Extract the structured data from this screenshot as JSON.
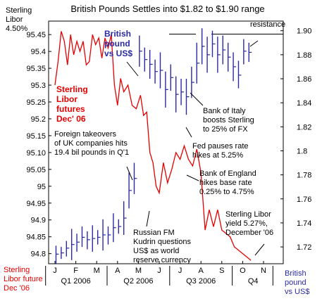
{
  "chart_data": {
    "type": "line",
    "title": "British Pounds Settles into $1.82 to $1.90 range",
    "left_axis": {
      "ticks": [
        "95.45",
        "95.4",
        "95.35",
        "95.3",
        "95.25",
        "95.2",
        "95.15",
        "95.10",
        "95.05",
        "95",
        "94.95",
        "94.9",
        "94.85",
        "94.8"
      ],
      "range": [
        94.77,
        95.49
      ],
      "top_label_line1": "Sterling",
      "top_label_line2": "Libor",
      "top_label_line3": "4.50%",
      "bottom_label_line1": "Sterling",
      "bottom_label_line2": "Libor future",
      "bottom_label_line3": "Dec '06"
    },
    "right_axis": {
      "ticks": [
        "1.90",
        "1.88",
        "1.86",
        "1.84",
        "1.82",
        "1.8",
        "1.78",
        "1.76",
        "1.74",
        "1.72"
      ],
      "range": [
        1.706,
        1.908
      ],
      "bottom_label_line1": "British",
      "bottom_label_line2": "pound",
      "bottom_label_line3": "vs US$"
    },
    "x_axis": {
      "months": [
        "J",
        "F",
        "M",
        "A",
        "M",
        "J",
        "J",
        "A",
        "S",
        "O",
        "N"
      ],
      "quarters": [
        "Q1 2006",
        "Q2 2006",
        "Q3 2006",
        "Q4"
      ]
    },
    "series": [
      {
        "name": "Sterling Libor futures Dec' 06",
        "color": "#e60000",
        "axis": "left",
        "x": [
          0,
          0.15,
          0.3,
          0.45,
          0.6,
          0.75,
          0.9,
          1.05,
          1.2,
          1.35,
          1.5,
          1.65,
          1.8,
          1.95,
          2.1,
          2.25,
          2.4,
          2.55,
          2.7,
          2.85,
          3.0,
          3.15,
          3.3,
          3.5,
          3.7,
          3.9,
          4.1,
          4.25,
          4.4,
          4.55,
          4.7,
          4.85,
          5.0,
          5.2,
          5.4,
          5.6,
          5.8,
          6.0,
          6.2,
          6.4,
          6.6,
          6.8,
          7.0,
          7.2,
          7.4,
          7.6,
          7.8,
          8.0,
          8.2,
          8.4,
          8.6,
          8.8,
          9.0,
          9.2,
          9.4
        ],
        "values": [
          95.3,
          95.37,
          95.46,
          95.43,
          95.36,
          95.45,
          95.39,
          95.43,
          95.4,
          95.43,
          95.36,
          95.37,
          95.45,
          95.42,
          95.44,
          95.38,
          95.44,
          95.41,
          95.45,
          95.3,
          95.24,
          95.32,
          95.28,
          95.3,
          95.24,
          95.23,
          95.27,
          95.21,
          95.22,
          95.1,
          95.07,
          95.0,
          94.98,
          95.07,
          95.01,
          95.05,
          95.1,
          95.08,
          95.12,
          95.08,
          95.06,
          95.11,
          95.04,
          94.87,
          94.93,
          94.88,
          94.93,
          94.87,
          94.86,
          94.85,
          94.82,
          94.81,
          94.8,
          94.79,
          94.78
        ]
      },
      {
        "name": "British pound vs US$",
        "color": "#2a2aa6",
        "axis": "right",
        "bars": [
          [
            0.05,
            1.706,
            1.721
          ],
          [
            0.3,
            1.71,
            1.72
          ],
          [
            0.55,
            1.712,
            1.725
          ],
          [
            0.8,
            1.709,
            1.735
          ],
          [
            1.05,
            1.716,
            1.731
          ],
          [
            1.3,
            1.72,
            1.737
          ],
          [
            1.55,
            1.718,
            1.733
          ],
          [
            1.8,
            1.716,
            1.738
          ],
          [
            2.05,
            1.722,
            1.734
          ],
          [
            2.3,
            1.717,
            1.743
          ],
          [
            2.55,
            1.722,
            1.737
          ],
          [
            2.8,
            1.724,
            1.748
          ],
          [
            3.05,
            1.731,
            1.743
          ],
          [
            3.3,
            1.73,
            1.758
          ],
          [
            3.55,
            1.752,
            1.782
          ],
          [
            3.8,
            1.764,
            1.79
          ],
          [
            4.05,
            1.87,
            1.896
          ],
          [
            4.3,
            1.866,
            1.886
          ],
          [
            4.55,
            1.86,
            1.884
          ],
          [
            4.8,
            1.856,
            1.876
          ],
          [
            5.05,
            1.852,
            1.882
          ],
          [
            5.3,
            1.836,
            1.866
          ],
          [
            5.55,
            1.85,
            1.872
          ],
          [
            5.8,
            1.832,
            1.862
          ],
          [
            6.05,
            1.838,
            1.86
          ],
          [
            6.3,
            1.83,
            1.86
          ],
          [
            6.55,
            1.844,
            1.87
          ],
          [
            6.8,
            1.856,
            1.89
          ],
          [
            7.05,
            1.872,
            1.902
          ],
          [
            7.3,
            1.865,
            1.895
          ],
          [
            7.55,
            1.878,
            1.9
          ],
          [
            7.8,
            1.865,
            1.895
          ],
          [
            8.05,
            1.872,
            1.896
          ],
          [
            8.3,
            1.866,
            1.89
          ],
          [
            8.55,
            1.858,
            1.882
          ],
          [
            8.8,
            1.852,
            1.875
          ],
          [
            9.05,
            1.872,
            1.893
          ],
          [
            9.3,
            1.874,
            1.89
          ]
        ],
        "values": [
          1.714,
          1.715,
          1.719,
          1.722,
          1.724,
          1.728,
          1.726,
          1.727,
          1.728,
          1.73,
          1.73,
          1.736,
          1.737,
          1.744,
          1.767,
          1.777,
          1.883,
          1.876,
          1.872,
          1.866,
          1.867,
          1.851,
          1.861,
          1.847,
          1.849,
          1.845,
          1.857,
          1.873,
          1.887,
          1.88,
          1.889,
          1.88,
          1.884,
          1.878,
          1.87,
          1.863,
          1.883,
          1.882
        ]
      }
    ],
    "annotations": {
      "british_pound_label_1": "British",
      "british_pound_label_2": "pound",
      "british_pound_label_3": "vs US$",
      "libor_futures_label_1": "Sterling",
      "libor_futures_label_2": "Libor",
      "libor_futures_label_3": "futures",
      "libor_futures_label_4": "Dec' 06",
      "resistance": "resistance",
      "bank_of_italy_1": "Bank of Italy",
      "bank_of_italy_2": "boosts Sterling",
      "bank_of_italy_3": "to 25% of FX",
      "takeovers_1": "Foreign takeovers",
      "takeovers_2": "of UK companies hits",
      "takeovers_3": "19.4 bil pounds in Q'1",
      "fed_1": "Fed pauses rate",
      "fed_2": "hikes at 5.25%",
      "boe_1": "Bank of England",
      "boe_2": "hikes base rate",
      "boe_3": "0.25% to 4.75%",
      "libor_yield_1": "Sterling Libor",
      "libor_yield_2": "yield 5.27%,",
      "libor_yield_3": "December '06",
      "russian_1": "Russian FM",
      "russian_2": "Kudrin questions",
      "russian_3": "US$ as world",
      "russian_4": "reserve currency"
    }
  }
}
